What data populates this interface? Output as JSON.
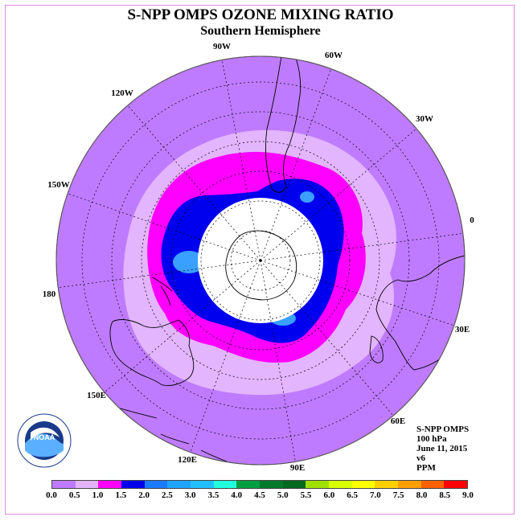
{
  "title": "S-NPP OMPS OZONE MIXING RATIO",
  "subtitle": "Southern Hemisphere",
  "longitude_labels": [
    "90W",
    "60W",
    "30W",
    "0",
    "30E",
    "60E",
    "90E",
    "120E",
    "150E",
    "180",
    "150W",
    "120W"
  ],
  "info": {
    "product": "S-NPP OMPS",
    "level": "100 hPa",
    "date": "June 11, 2015",
    "version": "v6",
    "units": "PPM"
  },
  "colorbar": {
    "ticks": [
      "0.0",
      "0.5",
      "1.0",
      "1.5",
      "2.0",
      "2.5",
      "3.0",
      "3.5",
      "4.0",
      "4.5",
      "5.0",
      "5.5",
      "6.0",
      "6.5",
      "7.0",
      "7.5",
      "8.0",
      "8.5",
      "9.0"
    ],
    "colors": [
      "#bf7bff",
      "#e3b5ff",
      "#ff00ff",
      "#0000ee",
      "#1a7bff",
      "#1fa4ff",
      "#22bfff",
      "#22ffdd",
      "#00a040",
      "#007a2a",
      "#006a20",
      "#a0e000",
      "#d8ff00",
      "#ffff00",
      "#ffd000",
      "#ffa000",
      "#ff6000",
      "#ff0000",
      "#b01010",
      "#8a5a2a"
    ]
  },
  "colors": {
    "ocean_base": "#bf7bff",
    "band_0_5": "#e3b5ff",
    "band_1_0": "#ff00ff",
    "band_1_5": "#0000ee",
    "band_2_0": "#3aa0ff",
    "no_data": "#ffffff"
  },
  "logo": {
    "text": "NOAA",
    "ring_text": "NATIONAL OCEANIC AND ATMOSPHERIC ADMINISTRATION · U.S. DEPARTMENT OF COMMERCE"
  }
}
